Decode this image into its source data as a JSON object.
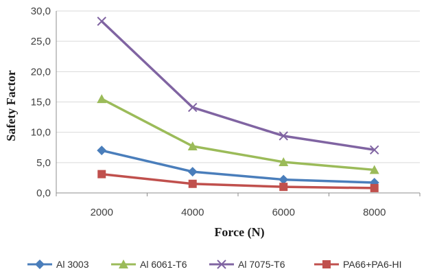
{
  "chart_data": {
    "type": "line",
    "title": "",
    "xlabel": "Force (N)",
    "ylabel": "Safety Factor",
    "x": [
      2000,
      4000,
      6000,
      8000
    ],
    "x_tick_labels": [
      "2000",
      "4000",
      "6000",
      "8000"
    ],
    "ylim": [
      0,
      30
    ],
    "y_tick_labels": [
      "0,0",
      "5,0",
      "10,0",
      "15,0",
      "20,0",
      "25,0",
      "30,0"
    ],
    "grid": "horizontal",
    "legend_position": "bottom",
    "series": [
      {
        "name": "Al 3003",
        "values": [
          7.0,
          3.5,
          2.2,
          1.7
        ],
        "color": "#4a7ebb",
        "marker": "diamond"
      },
      {
        "name": "Al 6061-T6",
        "values": [
          15.5,
          7.7,
          5.1,
          3.8
        ],
        "color": "#9bbb59",
        "marker": "triangle"
      },
      {
        "name": "Al 7075-T6",
        "values": [
          28.3,
          14.1,
          9.4,
          7.1
        ],
        "color": "#8064a2",
        "marker": "x"
      },
      {
        "name": "PA66+PA6-HI",
        "values": [
          3.1,
          1.5,
          1.0,
          0.8
        ],
        "color": "#c0504d",
        "marker": "square"
      }
    ]
  }
}
